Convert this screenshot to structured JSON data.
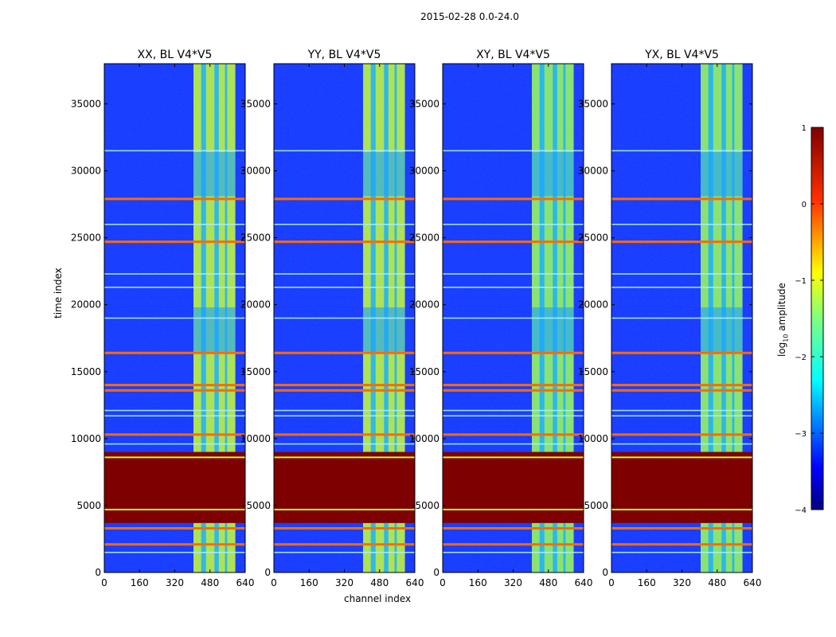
{
  "chart_data": {
    "type": "heatmap",
    "suptitle": "2015-02-28 0.0-24.0",
    "xlabel": "channel index",
    "ylabel": "time index",
    "xlim": [
      0,
      640
    ],
    "ylim": [
      0,
      38000
    ],
    "xticks": [
      0,
      160,
      320,
      480,
      640
    ],
    "yticks": [
      0,
      5000,
      10000,
      15000,
      20000,
      25000,
      30000,
      35000
    ],
    "panels": [
      {
        "title": "XX, BL V4*V5"
      },
      {
        "title": "YY, BL V4*V5"
      },
      {
        "title": "XY, BL V4*V5"
      },
      {
        "title": "YX, BL V4*V5"
      }
    ],
    "colorbar": {
      "label_prefix": "log",
      "label_sub": "10",
      "label_suffix": " amplitude",
      "range": [
        -4,
        1
      ],
      "ticks": [
        1,
        0,
        -1,
        -2,
        -3,
        -4
      ],
      "tick_labels": [
        "1",
        "0",
        "−1",
        "−2",
        "−3",
        "−4"
      ],
      "colormap": "jet"
    },
    "features": {
      "bright_channel_band": [
        405,
        595
      ],
      "bright_channel_gaps": [
        440,
        462,
        500,
        520,
        548,
        558
      ],
      "saturated_time_block": [
        3700,
        9000
      ],
      "high_time_rows": [
        27900,
        24700,
        16400,
        14000,
        13600,
        10300,
        3300,
        2100
      ]
    }
  }
}
